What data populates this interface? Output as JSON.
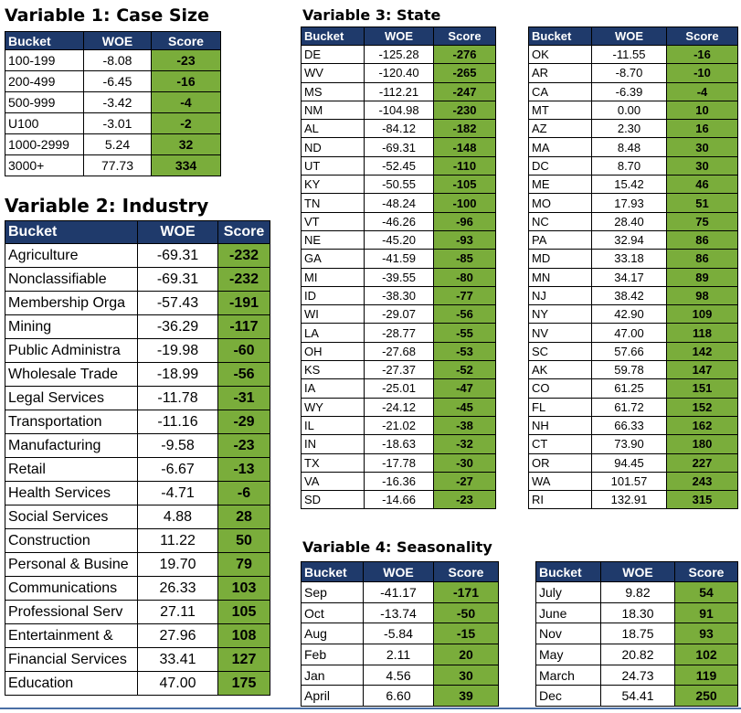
{
  "headers": {
    "bucket": "Bucket",
    "woe": "WOE",
    "score": "Score"
  },
  "v1": {
    "title": "Variable 1: Case Size",
    "rows": [
      {
        "b": "100-199",
        "w": "-8.08",
        "s": "-23"
      },
      {
        "b": "200-499",
        "w": "-6.45",
        "s": "-16"
      },
      {
        "b": "500-999",
        "w": "-3.42",
        "s": "-4"
      },
      {
        "b": "U100",
        "w": "-3.01",
        "s": "-2"
      },
      {
        "b": "1000-2999",
        "w": "5.24",
        "s": "32"
      },
      {
        "b": "3000+",
        "w": "77.73",
        "s": "334"
      }
    ]
  },
  "v2": {
    "title": "Variable 2: Industry",
    "rows": [
      {
        "b": "Agriculture",
        "w": "-69.31",
        "s": "-232"
      },
      {
        "b": "Nonclassifiable",
        "w": "-69.31",
        "s": "-232"
      },
      {
        "b": "Membership Orga",
        "w": "-57.43",
        "s": "-191"
      },
      {
        "b": "Mining",
        "w": "-36.29",
        "s": "-117"
      },
      {
        "b": "Public Administra",
        "w": "-19.98",
        "s": "-60"
      },
      {
        "b": "Wholesale Trade",
        "w": "-18.99",
        "s": "-56"
      },
      {
        "b": "Legal Services",
        "w": "-11.78",
        "s": "-31"
      },
      {
        "b": "Transportation",
        "w": "-11.16",
        "s": "-29"
      },
      {
        "b": "Manufacturing",
        "w": "-9.58",
        "s": "-23"
      },
      {
        "b": "Retail",
        "w": "-6.67",
        "s": "-13"
      },
      {
        "b": "Health Services",
        "w": "-4.71",
        "s": "-6"
      },
      {
        "b": "Social Services",
        "w": "4.88",
        "s": "28"
      },
      {
        "b": "Construction",
        "w": "11.22",
        "s": "50"
      },
      {
        "b": "Personal & Busine",
        "w": "19.70",
        "s": "79"
      },
      {
        "b": "Communications",
        "w": "26.33",
        "s": "103"
      },
      {
        "b": "Professional Serv",
        "w": "27.11",
        "s": "105"
      },
      {
        "b": "Entertainment &",
        "w": "27.96",
        "s": "108"
      },
      {
        "b": "Financial Services",
        "w": "33.41",
        "s": "127"
      },
      {
        "b": "Education",
        "w": "47.00",
        "s": "175"
      }
    ]
  },
  "v3": {
    "title": "Variable 3: State",
    "left": [
      {
        "b": "DE",
        "w": "-125.28",
        "s": "-276"
      },
      {
        "b": "WV",
        "w": "-120.40",
        "s": "-265"
      },
      {
        "b": "MS",
        "w": "-112.21",
        "s": "-247"
      },
      {
        "b": "NM",
        "w": "-104.98",
        "s": "-230"
      },
      {
        "b": "AL",
        "w": "-84.12",
        "s": "-182"
      },
      {
        "b": "ND",
        "w": "-69.31",
        "s": "-148"
      },
      {
        "b": "UT",
        "w": "-52.45",
        "s": "-110"
      },
      {
        "b": "KY",
        "w": "-50.55",
        "s": "-105"
      },
      {
        "b": "TN",
        "w": "-48.24",
        "s": "-100"
      },
      {
        "b": "VT",
        "w": "-46.26",
        "s": "-96"
      },
      {
        "b": "NE",
        "w": "-45.20",
        "s": "-93"
      },
      {
        "b": "GA",
        "w": "-41.59",
        "s": "-85"
      },
      {
        "b": "MI",
        "w": "-39.55",
        "s": "-80"
      },
      {
        "b": "ID",
        "w": "-38.30",
        "s": "-77"
      },
      {
        "b": "WI",
        "w": "-29.07",
        "s": "-56"
      },
      {
        "b": "LA",
        "w": "-28.77",
        "s": "-55"
      },
      {
        "b": "OH",
        "w": "-27.68",
        "s": "-53"
      },
      {
        "b": "KS",
        "w": "-27.37",
        "s": "-52"
      },
      {
        "b": "IA",
        "w": "-25.01",
        "s": "-47"
      },
      {
        "b": "WY",
        "w": "-24.12",
        "s": "-45"
      },
      {
        "b": "IL",
        "w": "-21.02",
        "s": "-38"
      },
      {
        "b": "IN",
        "w": "-18.63",
        "s": "-32"
      },
      {
        "b": "TX",
        "w": "-17.78",
        "s": "-30"
      },
      {
        "b": "VA",
        "w": "-16.36",
        "s": "-27"
      },
      {
        "b": "SD",
        "w": "-14.66",
        "s": "-23"
      }
    ],
    "right": [
      {
        "b": "OK",
        "w": "-11.55",
        "s": "-16"
      },
      {
        "b": "AR",
        "w": "-8.70",
        "s": "-10"
      },
      {
        "b": "CA",
        "w": "-6.39",
        "s": "-4"
      },
      {
        "b": "MT",
        "w": "0.00",
        "s": "10"
      },
      {
        "b": "AZ",
        "w": "2.30",
        "s": "16"
      },
      {
        "b": "MA",
        "w": "8.48",
        "s": "30"
      },
      {
        "b": "DC",
        "w": "8.70",
        "s": "30"
      },
      {
        "b": "ME",
        "w": "15.42",
        "s": "46"
      },
      {
        "b": "MO",
        "w": "17.93",
        "s": "51"
      },
      {
        "b": "NC",
        "w": "28.40",
        "s": "75"
      },
      {
        "b": "PA",
        "w": "32.94",
        "s": "86"
      },
      {
        "b": "MD",
        "w": "33.18",
        "s": "86"
      },
      {
        "b": "MN",
        "w": "34.17",
        "s": "89"
      },
      {
        "b": "NJ",
        "w": "38.42",
        "s": "98"
      },
      {
        "b": "NY",
        "w": "42.90",
        "s": "109"
      },
      {
        "b": "NV",
        "w": "47.00",
        "s": "118"
      },
      {
        "b": "SC",
        "w": "57.66",
        "s": "142"
      },
      {
        "b": "AK",
        "w": "59.78",
        "s": "147"
      },
      {
        "b": "CO",
        "w": "61.25",
        "s": "151"
      },
      {
        "b": "FL",
        "w": "61.72",
        "s": "152"
      },
      {
        "b": "NH",
        "w": "66.33",
        "s": "162"
      },
      {
        "b": "CT",
        "w": "73.90",
        "s": "180"
      },
      {
        "b": "OR",
        "w": "94.45",
        "s": "227"
      },
      {
        "b": "WA",
        "w": "101.57",
        "s": "243"
      },
      {
        "b": "RI",
        "w": "132.91",
        "s": "315"
      }
    ]
  },
  "v4": {
    "title": "Variable 4: Seasonality",
    "left": [
      {
        "b": "Sep",
        "w": "-41.17",
        "s": "-171"
      },
      {
        "b": "Oct",
        "w": "-13.74",
        "s": "-50"
      },
      {
        "b": "Aug",
        "w": "-5.84",
        "s": "-15"
      },
      {
        "b": "Feb",
        "w": "2.11",
        "s": "20"
      },
      {
        "b": "Jan",
        "w": "4.56",
        "s": "30"
      },
      {
        "b": "April",
        "w": "6.60",
        "s": "39"
      }
    ],
    "right": [
      {
        "b": "July",
        "w": "9.82",
        "s": "54"
      },
      {
        "b": "June",
        "w": "18.30",
        "s": "91"
      },
      {
        "b": "Nov",
        "w": "18.75",
        "s": "93"
      },
      {
        "b": "May",
        "w": "20.82",
        "s": "102"
      },
      {
        "b": "March",
        "w": "24.73",
        "s": "119"
      },
      {
        "b": "Dec",
        "w": "54.41",
        "s": "250"
      }
    ]
  },
  "colors": {
    "header_bg": "#1f3a6b",
    "score_bg": "#7aad3b"
  }
}
